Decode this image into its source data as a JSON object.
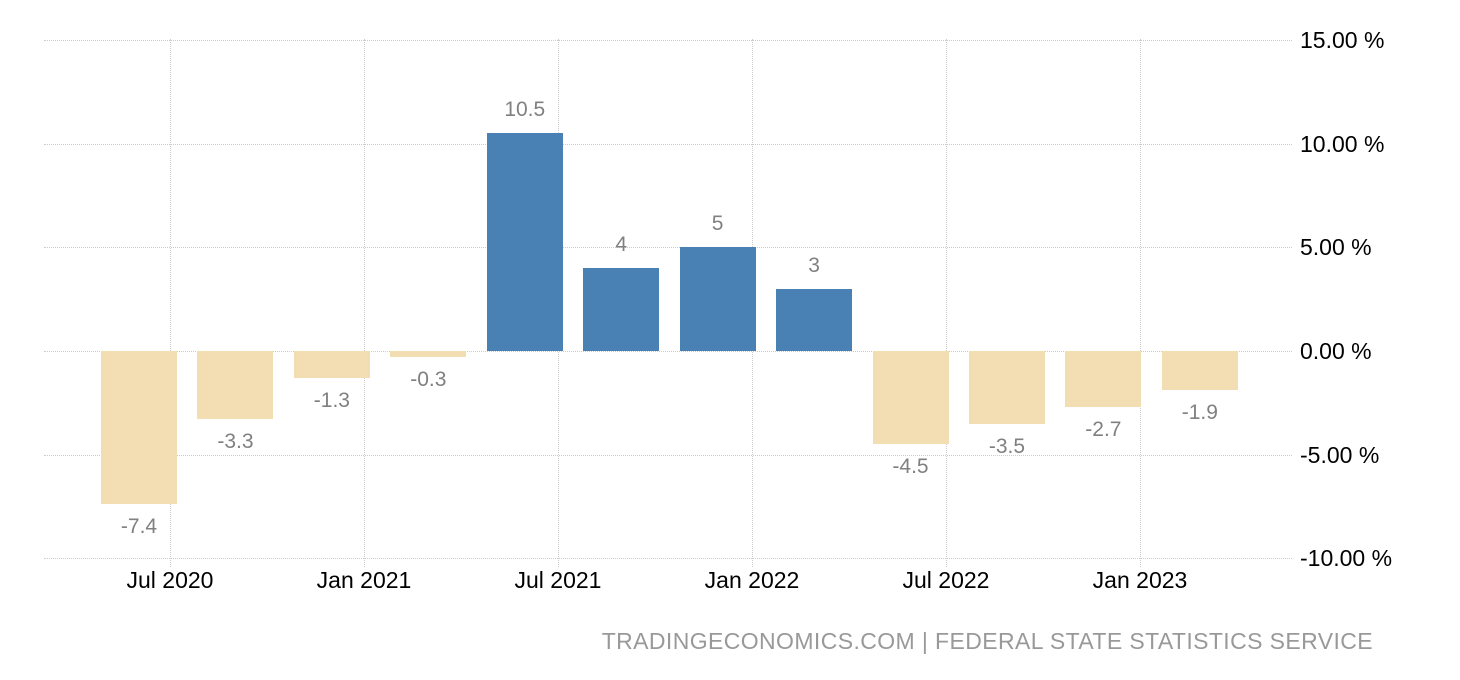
{
  "chart_data": {
    "type": "bar",
    "title": "",
    "xlabel": "",
    "ylabel": "",
    "values": [
      -7.4,
      -3.3,
      -1.3,
      -0.3,
      10.5,
      4,
      5,
      3,
      -4.5,
      -3.5,
      -2.7,
      -1.9
    ],
    "bar_labels": [
      "-7.4",
      "-3.3",
      "-1.3",
      "-0.3",
      "10.5",
      "4",
      "5",
      "3",
      "-4.5",
      "-3.5",
      "-2.7",
      "-1.9"
    ],
    "x_tick_labels": [
      "Jul 2020",
      "Jan 2021",
      "Jul 2021",
      "Jan 2022",
      "Jul 2022",
      "Jan 2023"
    ],
    "y_tick_labels": [
      "15.00 %",
      "10.00 %",
      "5.00 %",
      "0.00 %",
      "-5.00 %",
      "-10.00 %"
    ],
    "y_tick_values": [
      15,
      10,
      5,
      0,
      -5,
      -10
    ],
    "ylim": [
      -10,
      15
    ],
    "grid": "dotted",
    "legend": "none",
    "colors": {
      "positive_bar": "#4A81B4",
      "negative_bar": "#F3DDB3",
      "gridline": "#CCCCCC",
      "value_label": "#808080",
      "axis_label": "#000000"
    }
  },
  "footer": {
    "text": "TRADINGECONOMICS.COM | FEDERAL STATE STATISTICS SERVICE",
    "color": "#999999"
  }
}
